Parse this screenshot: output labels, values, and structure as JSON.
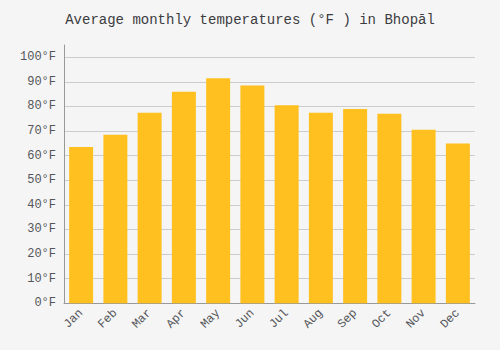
{
  "chart_data": {
    "type": "bar",
    "title": "Average monthly temperatures (°F ) in Bhopāl",
    "categories": [
      "Jan",
      "Feb",
      "Mar",
      "Apr",
      "May",
      "Jun",
      "Jul",
      "Aug",
      "Sep",
      "Oct",
      "Nov",
      "Dec"
    ],
    "values": [
      63.5,
      68.5,
      77.5,
      86,
      91.5,
      88.5,
      80.5,
      77.5,
      79,
      77,
      70.5,
      65
    ],
    "color": "#FFC020",
    "ylim": [
      0,
      105
    ],
    "yticks": [
      {
        "value": 0,
        "label": "0°F"
      },
      {
        "value": 10,
        "label": "10°F"
      },
      {
        "value": 20,
        "label": "20°F"
      },
      {
        "value": 30,
        "label": "30°F"
      },
      {
        "value": 40,
        "label": "40°F"
      },
      {
        "value": 50,
        "label": "50°F"
      },
      {
        "value": 60,
        "label": "60°F"
      },
      {
        "value": 70,
        "label": "70°F"
      },
      {
        "value": 80,
        "label": "80°F"
      },
      {
        "value": 90,
        "label": "90°F"
      },
      {
        "value": 100,
        "label": "100°F"
      }
    ],
    "grid": true
  }
}
